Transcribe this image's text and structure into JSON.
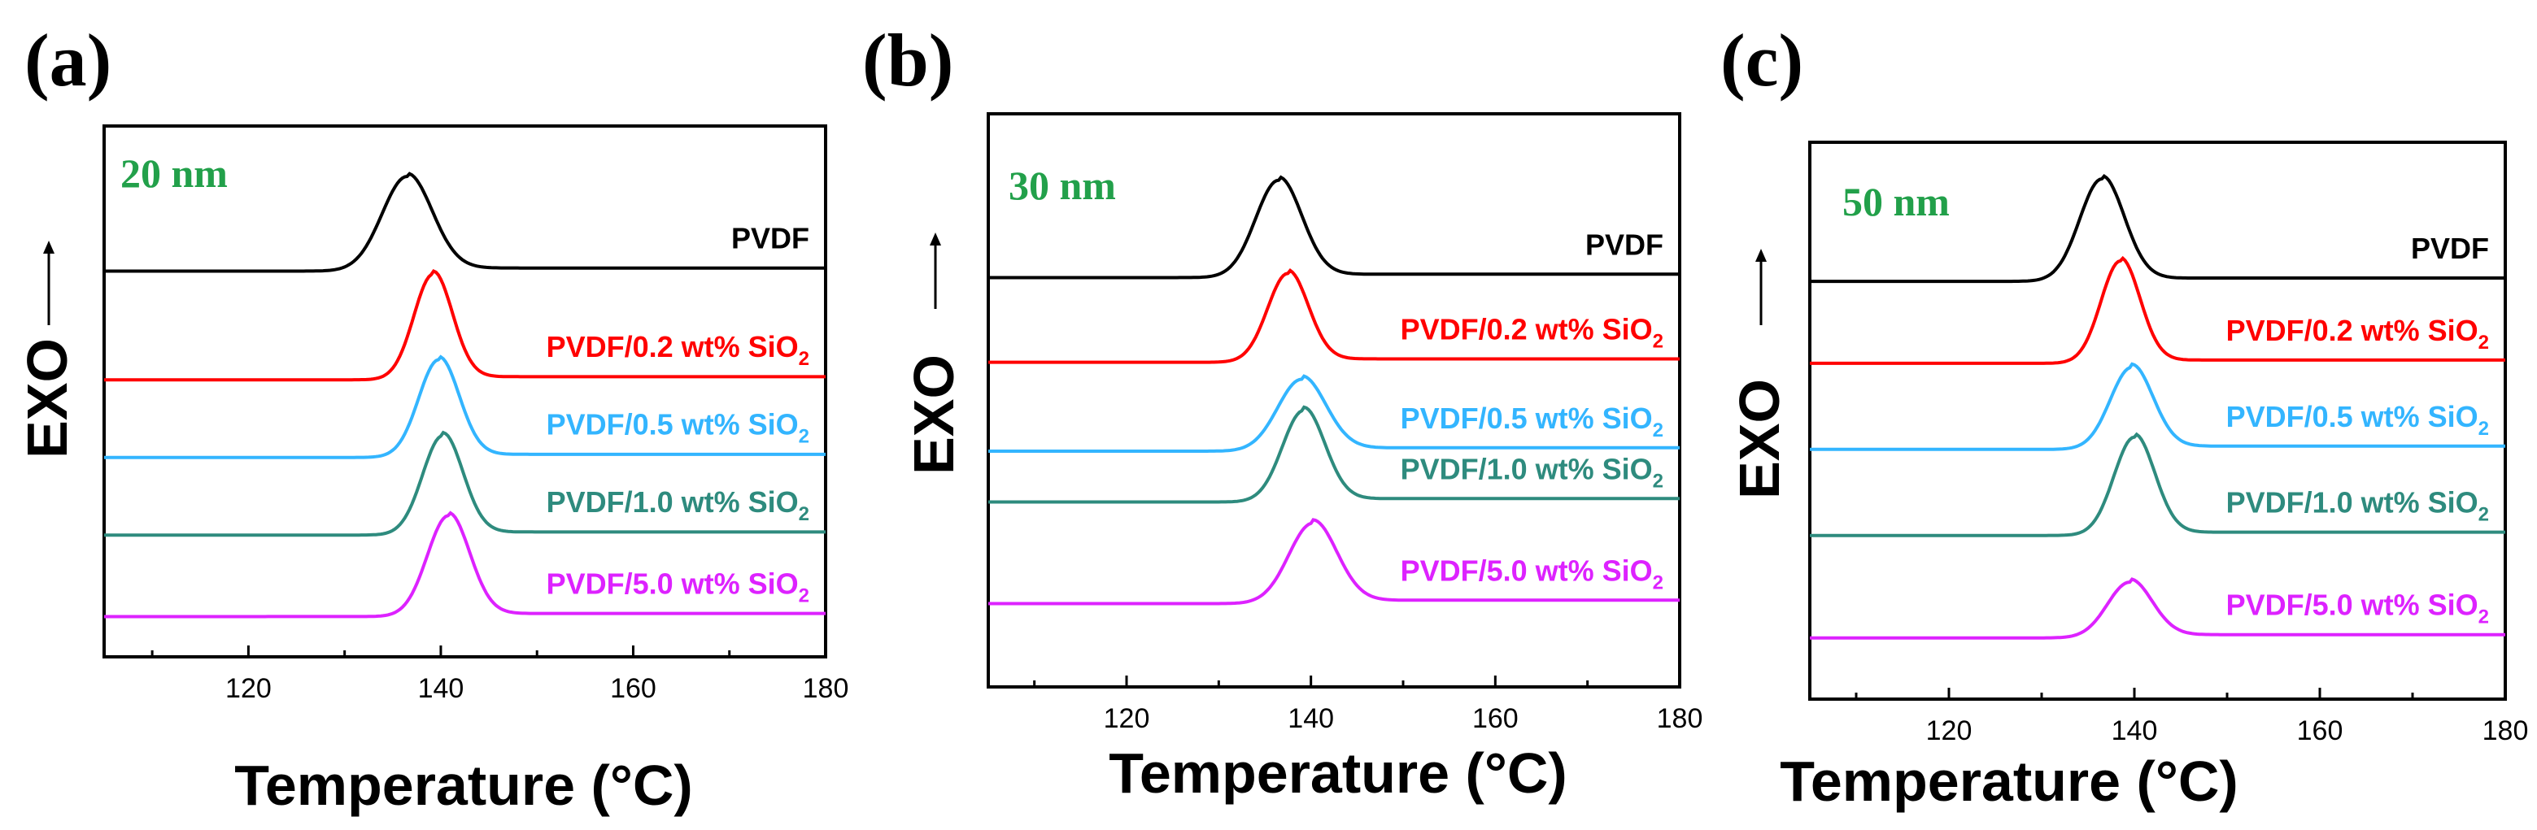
{
  "chart_data": [
    {
      "type": "line",
      "panel_label": "(a)",
      "size_label": "20 nm",
      "xlabel": "Temperature (°C)",
      "ylabel": "EXO",
      "ylabel_arrow": "⟶",
      "xlim": [
        105,
        180
      ],
      "xticks": [
        120,
        140,
        160,
        180
      ],
      "xtick_labels": [
        "120",
        "140",
        "160",
        "180"
      ],
      "grid": false,
      "series": [
        {
          "name": "PVDF",
          "label_main": "PVDF",
          "label_sub": "",
          "color": "#000000",
          "baseline": 4.55,
          "peak_x": 136.5,
          "peak_height": 1.22,
          "width": 2.6
        },
        {
          "name": "PVDF/0.2 wt% SiO2",
          "label_main": "PVDF/0.2 wt% SiO",
          "label_sub": "2",
          "color": "#ff0000",
          "baseline": 3.15,
          "peak_x": 139.2,
          "peak_height": 1.36,
          "width": 2.0
        },
        {
          "name": "PVDF/0.5 wt% SiO2",
          "label_main": "PVDF/0.5 wt% SiO",
          "label_sub": "2",
          "color": "#33b5ff",
          "baseline": 2.15,
          "peak_x": 139.8,
          "peak_height": 1.26,
          "width": 2.1
        },
        {
          "name": "PVDF/1.0 wt% SiO2",
          "label_main": "PVDF/1.0 wt% SiO",
          "label_sub": "2",
          "color": "#2e8b7e",
          "baseline": 1.15,
          "peak_x": 140.2,
          "peak_height": 1.28,
          "width": 2.1
        },
        {
          "name": "PVDF/5.0 wt% SiO2",
          "label_main": "PVDF/5.0 wt% SiO",
          "label_sub": "2",
          "color": "#dd22ff",
          "baseline": 0.1,
          "peak_x": 140.8,
          "peak_height": 1.3,
          "width": 2.2
        }
      ]
    },
    {
      "type": "line",
      "panel_label": "(b)",
      "size_label": "30 nm",
      "xlabel": "Temperature (°C)",
      "ylabel": "EXO",
      "ylabel_arrow": "⟶",
      "xlim": [
        105,
        180
      ],
      "xticks": [
        120,
        140,
        160,
        180
      ],
      "xtick_labels": [
        "120",
        "140",
        "160",
        "180"
      ],
      "grid": false,
      "series": [
        {
          "name": "PVDF",
          "label_main": "PVDF",
          "label_sub": "",
          "color": "#000000",
          "baseline": 4.45,
          "peak_x": 136.5,
          "peak_height": 1.15,
          "width": 2.5
        },
        {
          "name": "PVDF/0.2 wt% SiO2",
          "label_main": "PVDF/0.2 wt% SiO",
          "label_sub": "2",
          "color": "#ff0000",
          "baseline": 3.45,
          "peak_x": 137.5,
          "peak_height": 1.05,
          "width": 2.2
        },
        {
          "name": "PVDF/0.5 wt% SiO2",
          "label_main": "PVDF/0.5 wt% SiO",
          "label_sub": "2",
          "color": "#33b5ff",
          "baseline": 2.4,
          "peak_x": 139.0,
          "peak_height": 0.85,
          "width": 2.6
        },
        {
          "name": "PVDF/1.0 wt% SiO2",
          "label_main": "PVDF/1.0 wt% SiO",
          "label_sub": "2",
          "color": "#2e8b7e",
          "baseline": 1.8,
          "peak_x": 139.2,
          "peak_height": 1.08,
          "width": 2.3
        },
        {
          "name": "PVDF/5.0 wt% SiO2",
          "label_main": "PVDF/5.0 wt% SiO",
          "label_sub": "2",
          "color": "#dd22ff",
          "baseline": 0.6,
          "peak_x": 140.2,
          "peak_height": 0.95,
          "width": 2.6
        }
      ]
    },
    {
      "type": "line",
      "panel_label": "(c)",
      "size_label": "50 nm",
      "xlabel": "Temperature (°C)",
      "ylabel": "EXO",
      "ylabel_arrow": "⟶",
      "xlim": [
        105,
        180
      ],
      "xticks": [
        120,
        140,
        160,
        180
      ],
      "xtick_labels": [
        "120",
        "140",
        "160",
        "180"
      ],
      "grid": false,
      "series": [
        {
          "name": "PVDF",
          "label_main": "PVDF",
          "label_sub": "",
          "color": "#000000",
          "baseline": 4.7,
          "peak_x": 136.5,
          "peak_height": 1.25,
          "width": 2.4
        },
        {
          "name": "PVDF/0.2 wt% SiO2",
          "label_main": "PVDF/0.2 wt% SiO",
          "label_sub": "2",
          "color": "#ff0000",
          "baseline": 3.7,
          "peak_x": 138.5,
          "peak_height": 1.25,
          "width": 2.1
        },
        {
          "name": "PVDF/0.5 wt% SiO2",
          "label_main": "PVDF/0.5 wt% SiO",
          "label_sub": "2",
          "color": "#33b5ff",
          "baseline": 2.65,
          "peak_x": 139.7,
          "peak_height": 1.0,
          "width": 2.3
        },
        {
          "name": "PVDF/1.0 wt% SiO2",
          "label_main": "PVDF/1.0 wt% SiO",
          "label_sub": "2",
          "color": "#2e8b7e",
          "baseline": 1.6,
          "peak_x": 140.0,
          "peak_height": 1.2,
          "width": 2.2
        },
        {
          "name": "PVDF/5.0 wt% SiO2",
          "label_main": "PVDF/5.0 wt% SiO",
          "label_sub": "2",
          "color": "#dd22ff",
          "baseline": 0.35,
          "peak_x": 139.5,
          "peak_height": 0.68,
          "width": 2.4
        }
      ]
    }
  ],
  "size_label_color": "#22a04a"
}
